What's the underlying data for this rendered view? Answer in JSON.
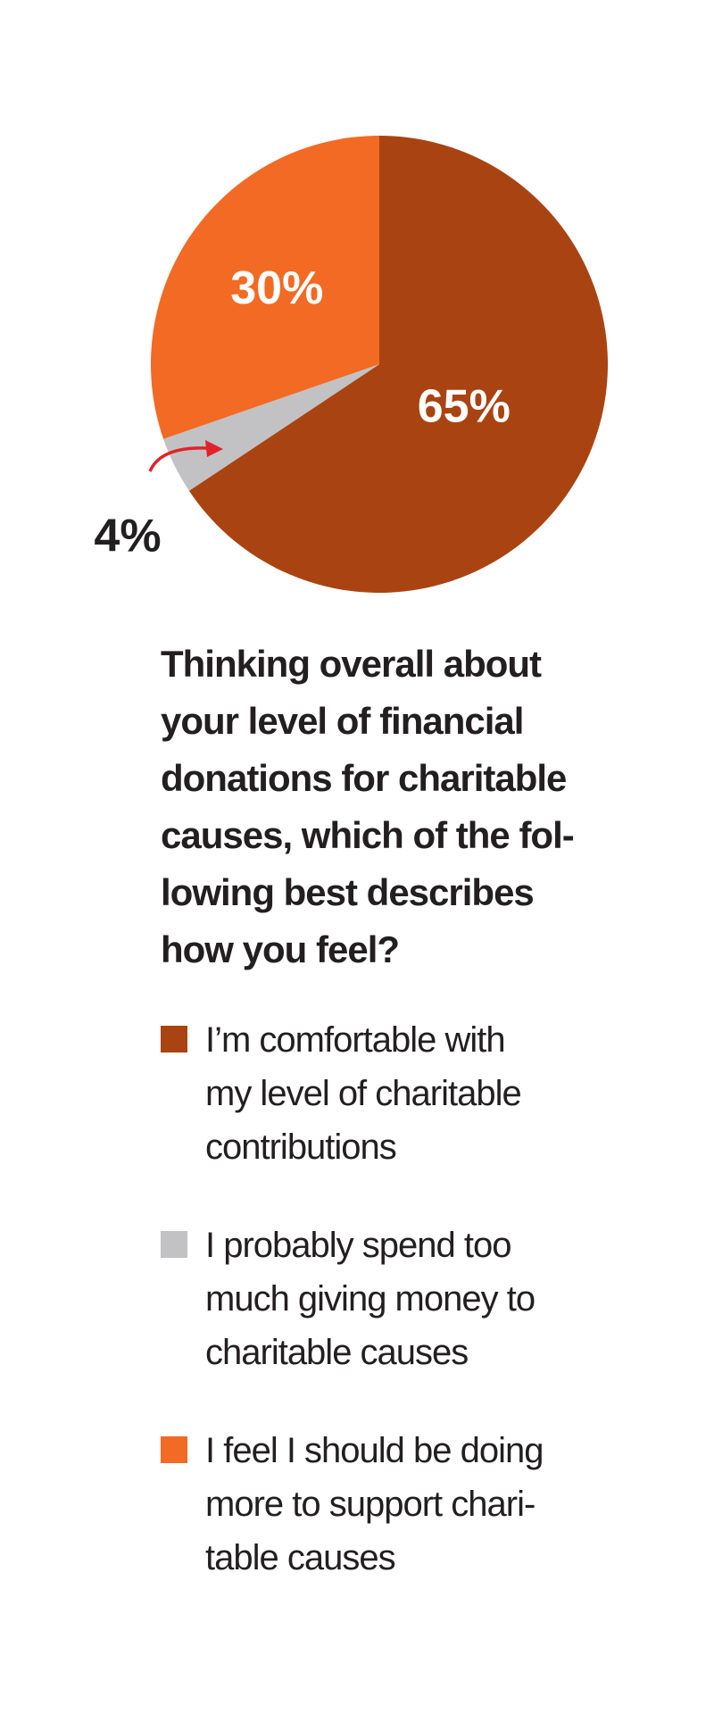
{
  "chart_data": {
    "type": "pie",
    "slices": [
      {
        "label": "I’m comfortable with my level of charitable contributions",
        "value": 65,
        "value_label": "65%",
        "color": "#a94412"
      },
      {
        "label": "I probably spend too much giving money to charitable causes",
        "value": 4,
        "value_label": "4%",
        "color": "#c2c2c4"
      },
      {
        "label": "I feel I should be doing more to support charitable causes",
        "value": 30,
        "value_label": "30%",
        "color": "#f26a24"
      }
    ],
    "title": "Thinking overall about your level of financial donations for charitable causes, which of the following best describes how you feel?",
    "legend_position": "bottom",
    "annotation_arrow_color": "#e0232b"
  },
  "question_lines": [
    "Thinking overall about",
    "your level of financial",
    "donations for charitable",
    "causes, which of the fol-",
    "lowing best describes",
    "how you feel?"
  ],
  "legend": [
    {
      "lines": [
        "I’m comfortable with",
        "my level of charitable",
        "contributions"
      ],
      "color": "#a94412"
    },
    {
      "lines": [
        "I probably spend too",
        "much giving money to",
        "charitable causes"
      ],
      "color": "#c2c2c4"
    },
    {
      "lines": [
        "I feel I should be doing",
        "more to support chari-",
        "table causes"
      ],
      "color": "#f26a24"
    }
  ]
}
